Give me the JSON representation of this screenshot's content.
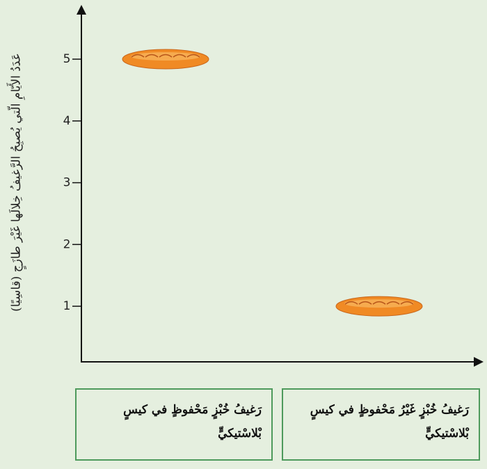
{
  "chart_data": {
    "type": "pictograph",
    "y_label": "عَدَدُ الأَيّامِ الّتي يُصبِحُ الرَّغيفُ خِلالَها غَيْرَ طازَجٍ (قاسِيًا)",
    "categories": [
      "رَغيفُ خُبْزٍ مَحْفوظٍ في كيسٍ بْلاسْتيكيٍّ",
      "رَغيفُ خُبْزٍ غَيْرُ مَحْفوظٍ في كيسٍ بْلاسْتيكيٍّ"
    ],
    "values": [
      5,
      1
    ],
    "color": "#f08a24",
    "ylim": [
      0.1,
      5.8
    ],
    "yticks": [
      1,
      2,
      3,
      4,
      5
    ]
  }
}
